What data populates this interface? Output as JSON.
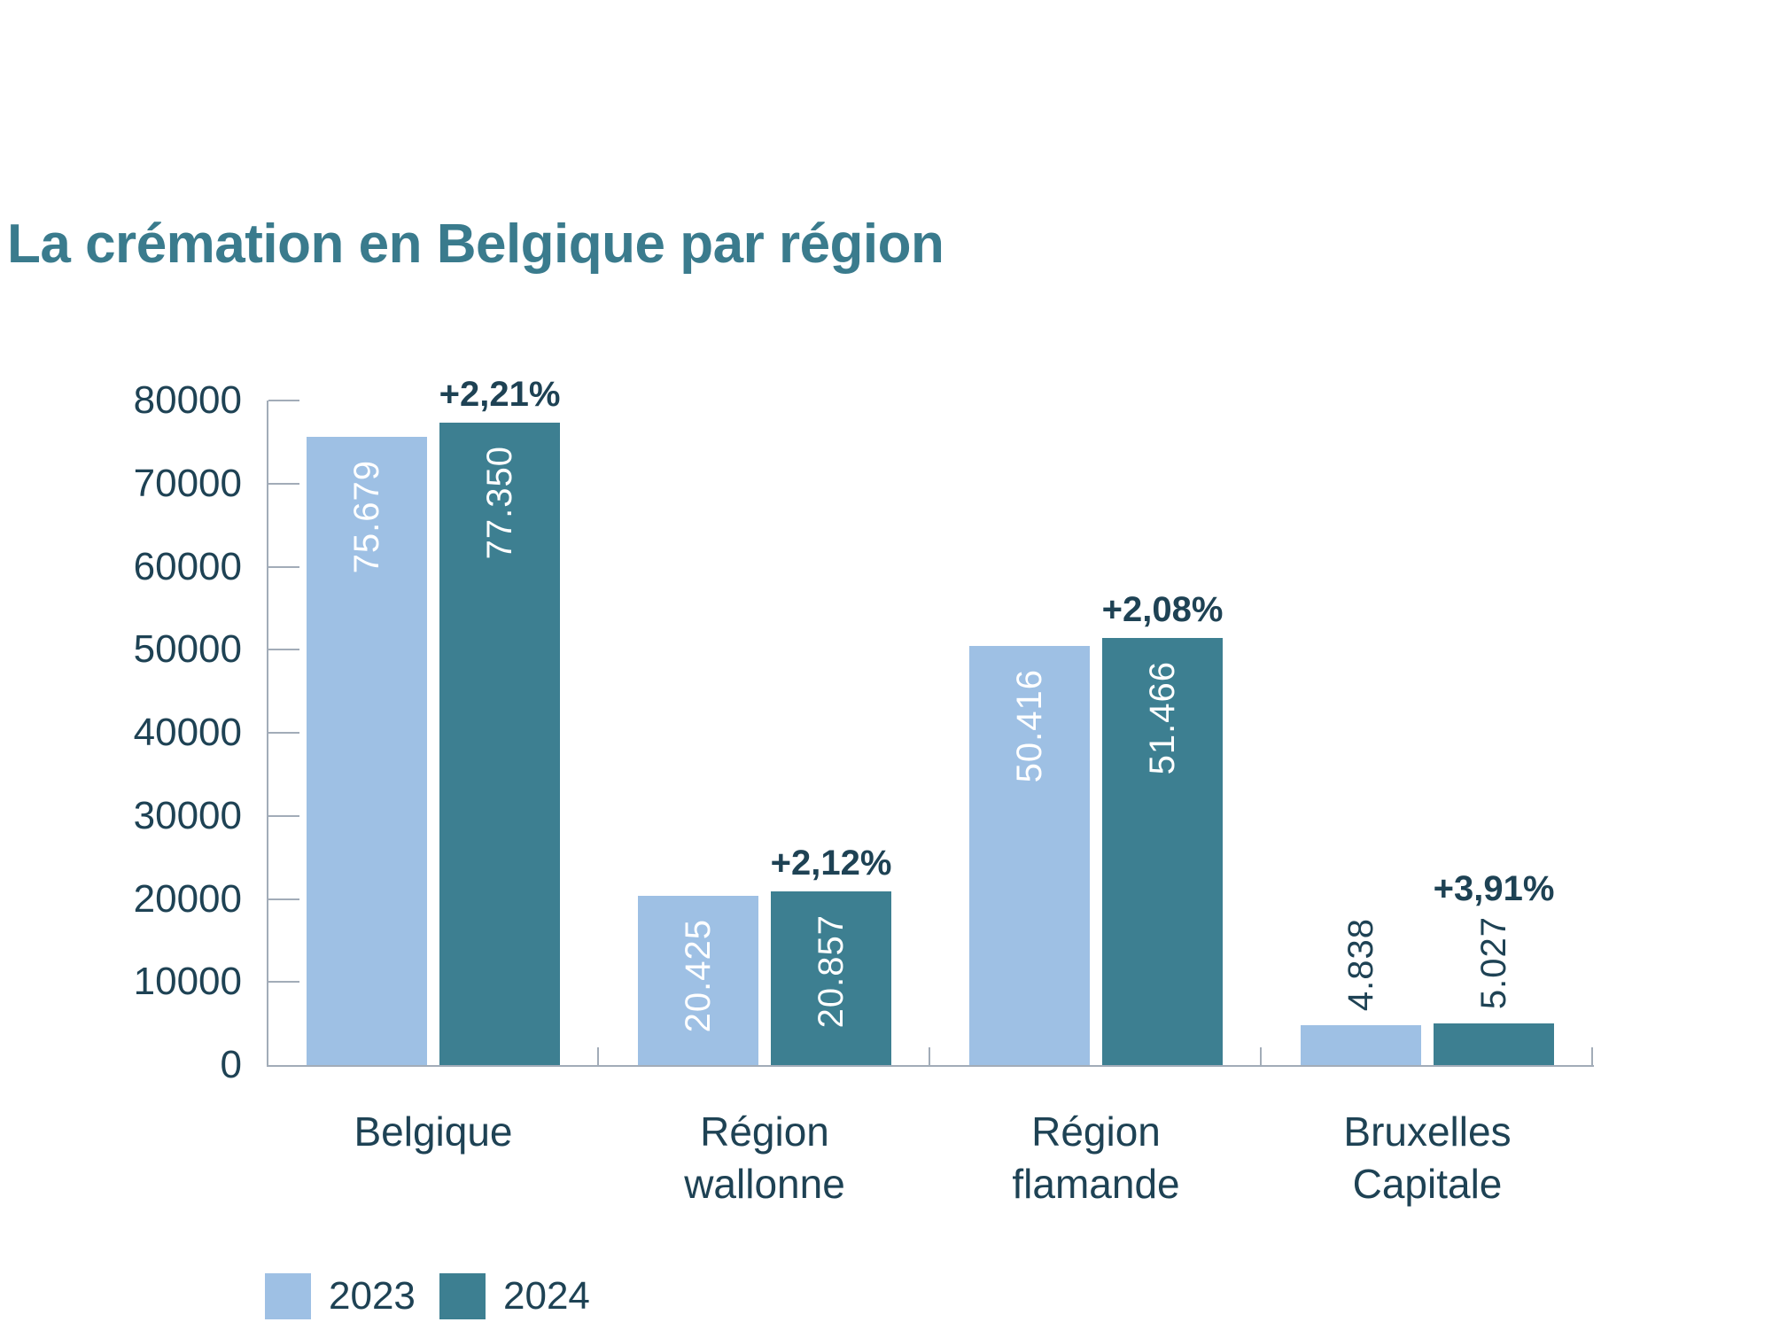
{
  "chart_data": {
    "type": "bar",
    "title": "La crémation en Belgique par région",
    "categories": [
      "Belgique",
      "Région\nwallonne",
      "Région\nflamande",
      "Bruxelles\nCapitale"
    ],
    "series": [
      {
        "name": "2023",
        "color": "#9EC0E4",
        "values": [
          75679,
          20425,
          50416,
          4838
        ],
        "labels": [
          "75.679",
          "20.425",
          "50.416",
          "4.838"
        ]
      },
      {
        "name": "2024",
        "color": "#3D7F91",
        "values": [
          77350,
          20857,
          51466,
          5027
        ],
        "labels": [
          "77.350",
          "20.857",
          "51.466",
          "5.027"
        ]
      }
    ],
    "pct_change_labels": [
      "+2,21%",
      "+2,12%",
      "+2,08%",
      "+3,91%"
    ],
    "y_axis": {
      "min": 0,
      "max": 80000,
      "tick_step": 10000,
      "tick_labels": [
        "0",
        "10000",
        "20000",
        "30000",
        "40000",
        "50000",
        "60000",
        "70000",
        "80000"
      ]
    },
    "legend": [
      {
        "label": "2023",
        "color": "#9EC0E4"
      },
      {
        "label": "2024",
        "color": "#3D7F91"
      }
    ],
    "grid": "off",
    "legend_position": "bottom-left",
    "colors": {
      "title": "#3A7B8D",
      "text": "#1E4254",
      "axis": "#A2ACB8",
      "bar_label_inside": "#FFFFFF"
    }
  }
}
